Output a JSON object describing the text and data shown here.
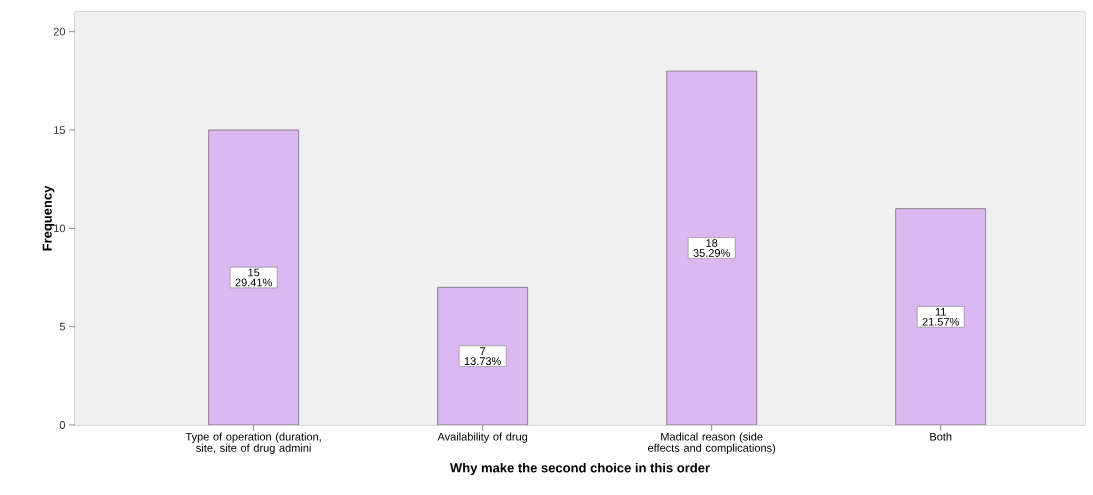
{
  "chart_data": {
    "type": "bar",
    "xlabel": "Why make the second choice in this order",
    "ylabel": "Frequency",
    "categories": [
      "Type of operation (duration, site, site of drug admini",
      "Availability of drug",
      "Madical reason (side effects and complications)",
      "Both"
    ],
    "values": [
      15,
      7,
      18,
      11
    ],
    "value_labels": [
      "15 29.41%",
      "7 13.73%",
      "18 35.29%",
      "11 21.57%"
    ],
    "color": "#dcb8f0",
    "ylim": [
      0,
      21
    ],
    "yticks": [
      0,
      5,
      10,
      15,
      20
    ]
  }
}
